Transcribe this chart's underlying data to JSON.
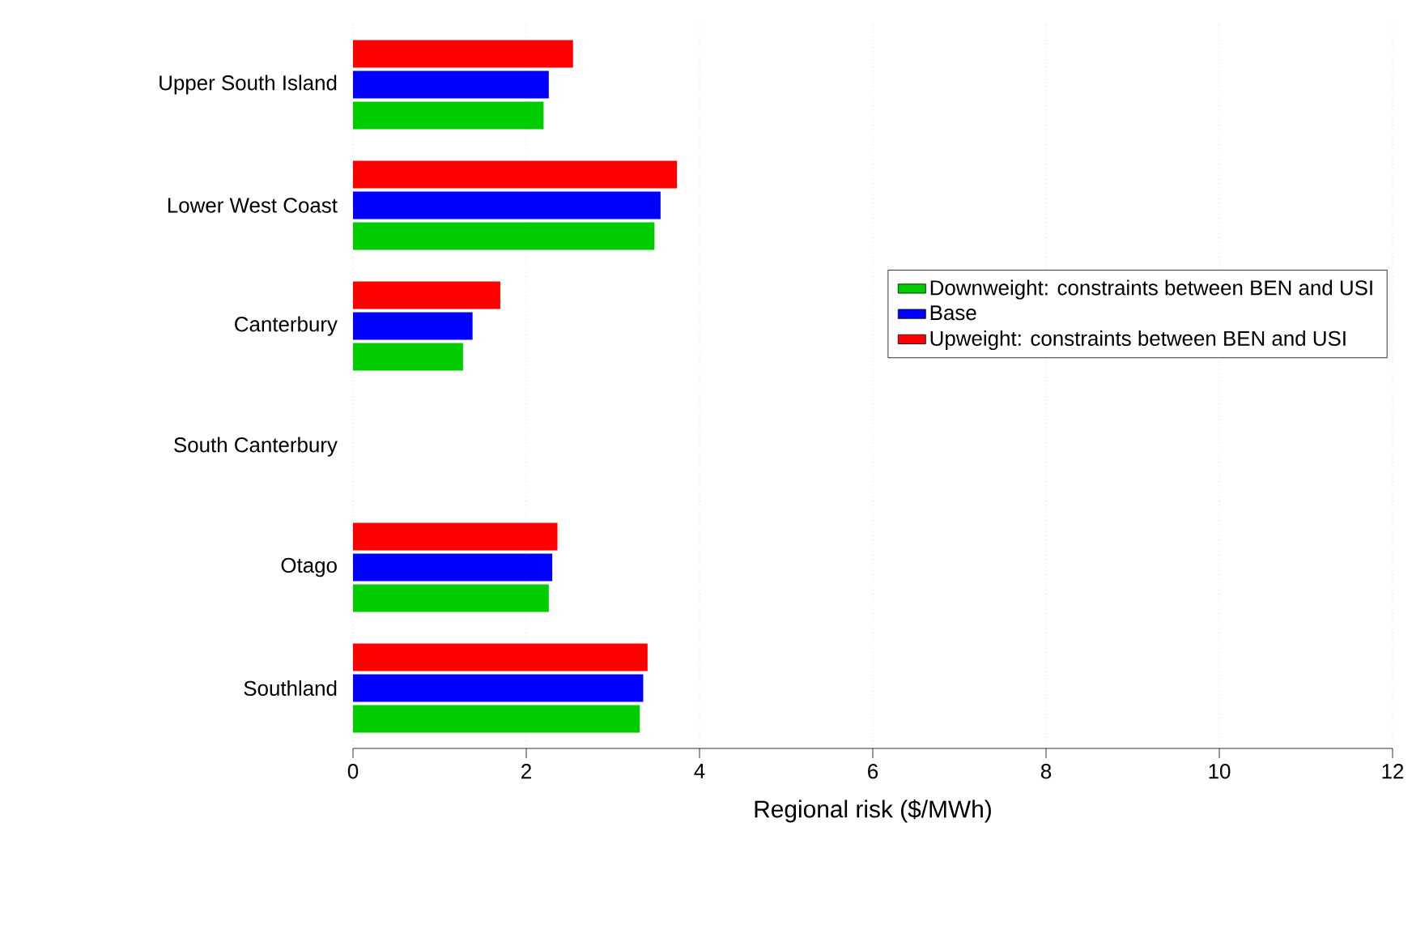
{
  "chart_data": {
    "type": "bar",
    "orientation": "horizontal",
    "xlabel": "Regional risk ($/MWh)",
    "categories": [
      "Upper South Island",
      "Lower West Coast",
      "Canterbury",
      "South Canterbury",
      "Otago",
      "Southland"
    ],
    "series": [
      {
        "name": "Downweight: constraints between BEN and USI",
        "color": "#00cc00",
        "values": [
          2.2,
          3.48,
          1.27,
          0,
          2.26,
          3.31
        ]
      },
      {
        "name": "Base",
        "color": "#0000ff",
        "values": [
          2.26,
          3.55,
          1.38,
          0,
          2.3,
          3.35
        ]
      },
      {
        "name": "Upweight: constraints between BEN and USI",
        "color": "#ff0000",
        "values": [
          2.54,
          3.74,
          1.7,
          0,
          2.36,
          3.4
        ]
      }
    ],
    "xlim": [
      0,
      12
    ],
    "xticks": [
      0,
      2,
      4,
      6,
      8,
      10,
      12
    ],
    "grid": "x",
    "legend": "right"
  }
}
